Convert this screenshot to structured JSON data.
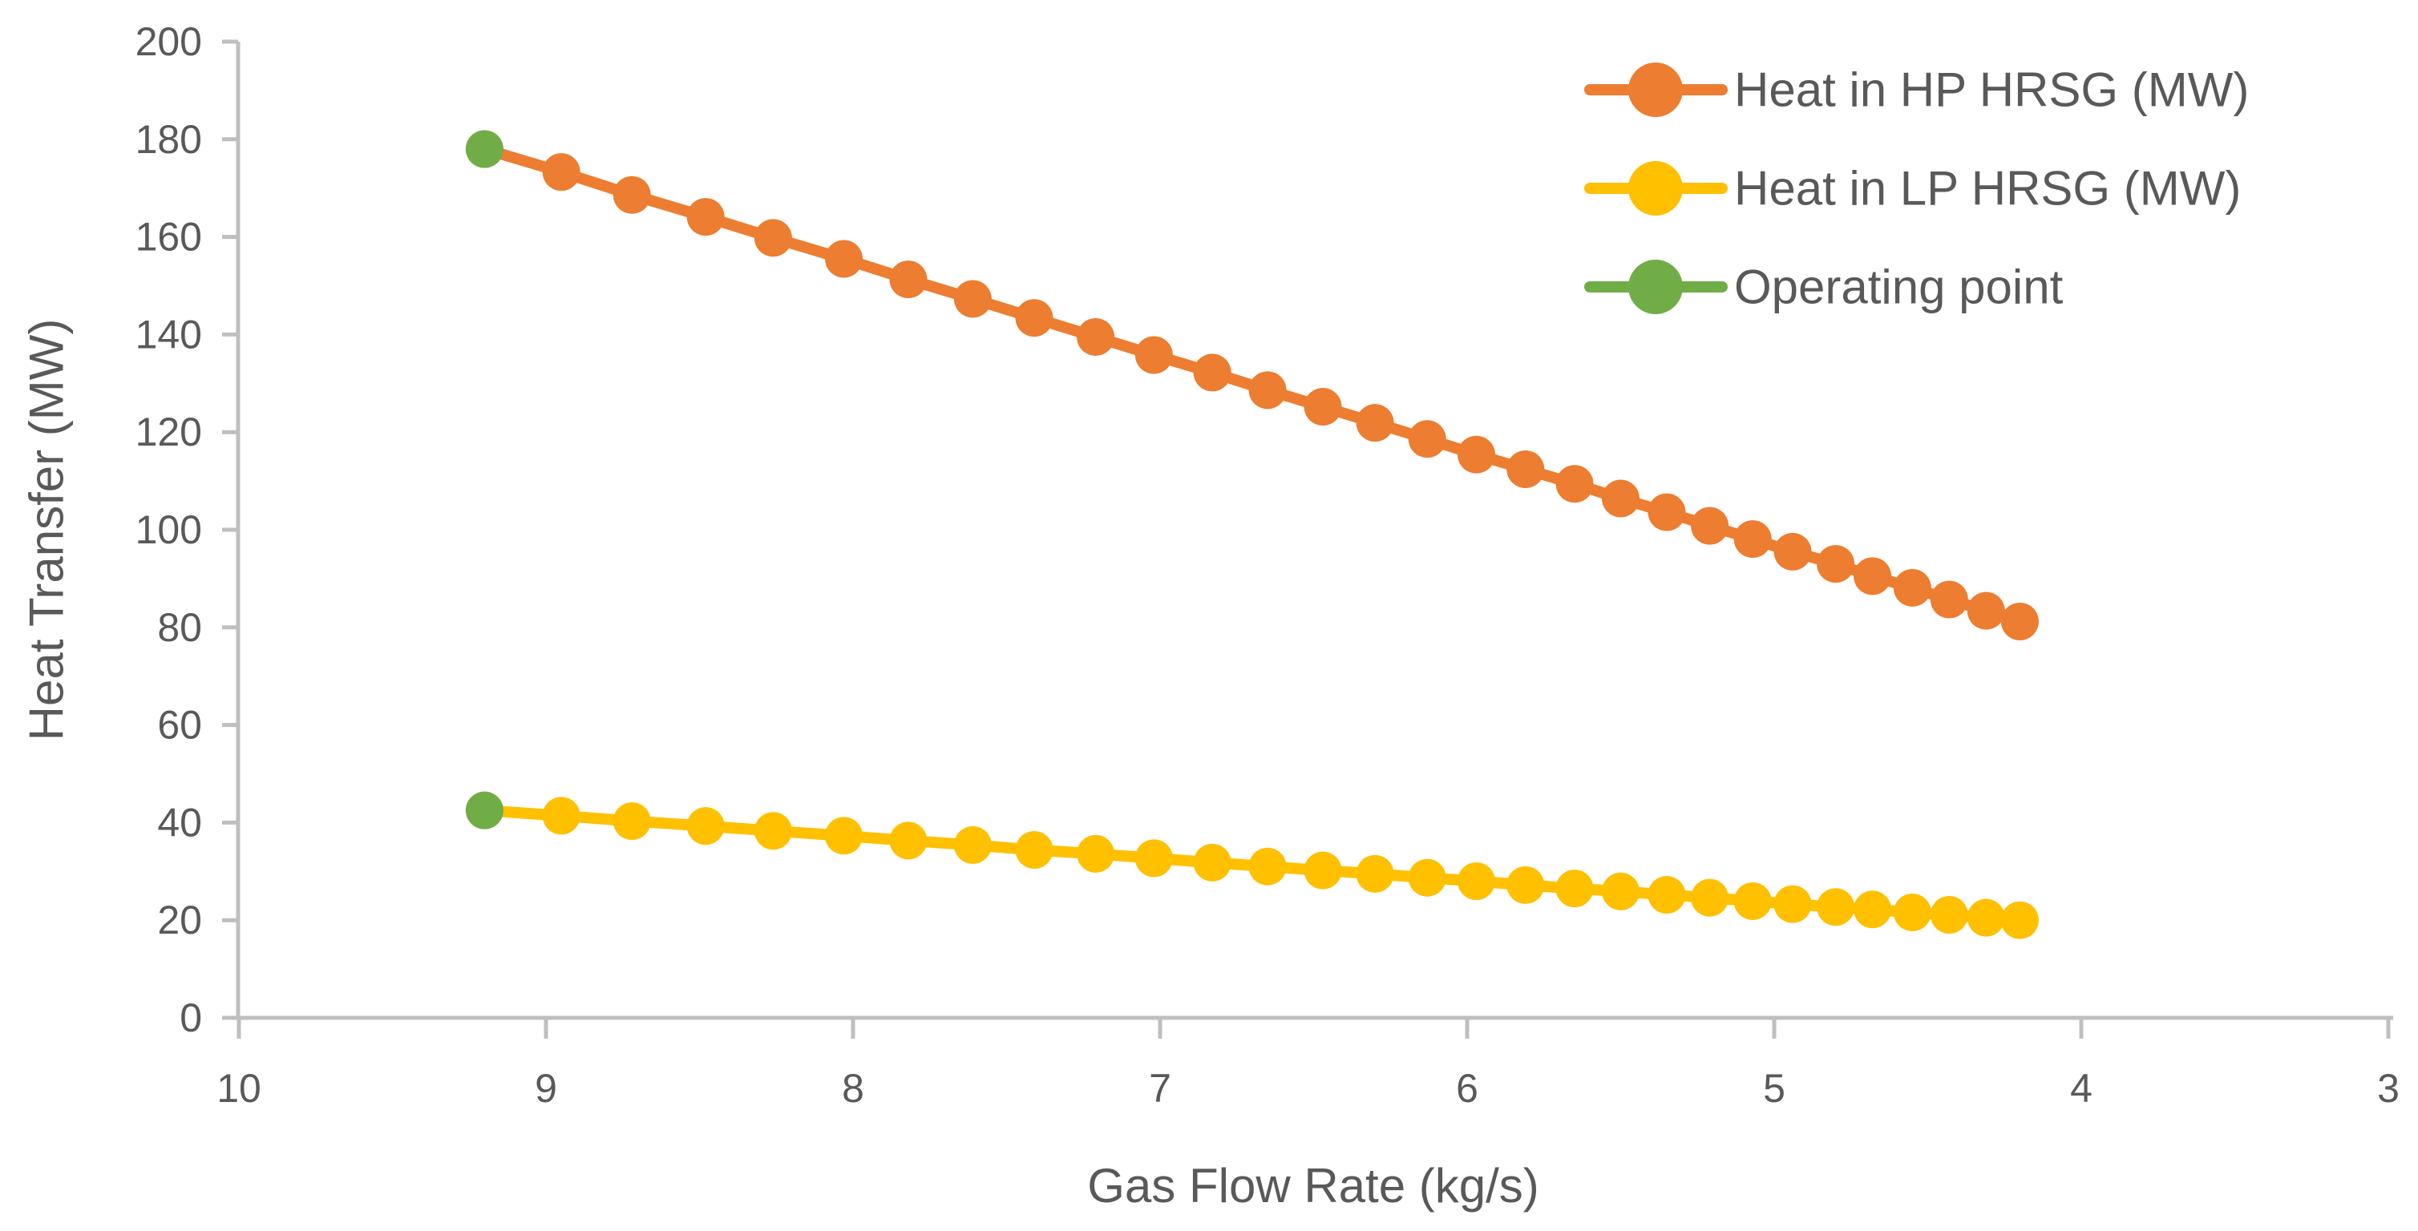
{
  "chart_data": {
    "type": "line",
    "title": "",
    "xlabel": "Gas Flow Rate (kg/s)",
    "ylabel": "Heat Transfer (MW)",
    "x_axis": {
      "min": 10,
      "max": 3,
      "reversed": true,
      "ticks": [
        10,
        9,
        8,
        7,
        6,
        5,
        4,
        3
      ]
    },
    "y_axis": {
      "min": 0,
      "max": 200,
      "step": 20,
      "ticks": [
        0,
        20,
        40,
        60,
        80,
        100,
        120,
        140,
        160,
        180,
        200
      ]
    },
    "grid": false,
    "legend_position": "top-right",
    "series": [
      {
        "name": "Heat in HP HRSG (MW)",
        "color": "#ED7D31",
        "marker": "circle",
        "line": true,
        "x": [
          9.2,
          8.95,
          8.72,
          8.48,
          8.26,
          8.03,
          7.82,
          7.61,
          7.41,
          7.21,
          7.02,
          6.83,
          6.65,
          6.47,
          6.3,
          6.13,
          5.97,
          5.81,
          5.65,
          5.5,
          5.35,
          5.21,
          5.07,
          4.94,
          4.8,
          4.68,
          4.55,
          4.43,
          4.31,
          4.2
        ],
        "values": [
          178,
          173.3,
          168.6,
          164.1,
          159.8,
          155.5,
          151.3,
          147.3,
          143.4,
          139.5,
          135.8,
          132.2,
          128.6,
          125.2,
          121.9,
          118.6,
          115.4,
          112.4,
          109.4,
          106.4,
          103.6,
          100.8,
          98.1,
          95.5,
          93,
          90.5,
          88.1,
          85.7,
          83.4,
          81.2
        ]
      },
      {
        "name": "Heat in LP HRSG (MW)",
        "color": "#FFC000",
        "marker": "circle",
        "line": true,
        "x": [
          9.2,
          8.95,
          8.72,
          8.48,
          8.26,
          8.03,
          7.82,
          7.61,
          7.41,
          7.21,
          7.02,
          6.83,
          6.65,
          6.47,
          6.3,
          6.13,
          5.97,
          5.81,
          5.65,
          5.5,
          5.35,
          5.21,
          5.07,
          4.94,
          4.8,
          4.68,
          4.55,
          4.43,
          4.31,
          4.2
        ],
        "values": [
          42.5,
          41.4,
          40.3,
          39.3,
          38.3,
          37.3,
          36.3,
          35.4,
          34.4,
          33.6,
          32.7,
          31.8,
          31,
          30.2,
          29.5,
          28.7,
          28,
          27.2,
          26.5,
          25.9,
          25.2,
          24.6,
          23.9,
          23.3,
          22.7,
          22.2,
          21.6,
          21.1,
          20.5,
          20
        ]
      },
      {
        "name": "Operating point",
        "color": "#70AD47",
        "marker": "circle",
        "line": false,
        "x": [
          9.2,
          9.2
        ],
        "values": [
          178,
          42.5
        ]
      }
    ]
  },
  "style": {
    "axis_color": "#BFBFBF",
    "text_color": "#595959",
    "background": "#FFFFFF"
  }
}
